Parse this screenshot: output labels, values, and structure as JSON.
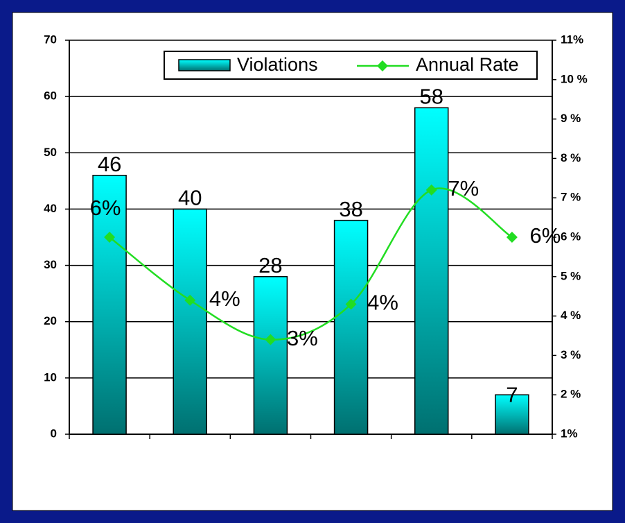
{
  "chart_data": {
    "type": "bar",
    "categories": [
      null,
      null,
      null,
      null,
      null,
      null
    ],
    "series": [
      {
        "name": "Violations",
        "type": "bar",
        "color": "#00e5e5",
        "values": [
          46,
          40,
          28,
          38,
          58,
          7
        ]
      },
      {
        "name": "Annual Rate",
        "type": "line",
        "axis": "y2",
        "color": "#22dd22",
        "values": [
          6.0,
          4.4,
          3.4,
          4.3,
          7.2,
          6.0
        ],
        "value_labels": [
          "6%",
          "4%",
          "3%",
          "4%",
          "7%",
          "6%"
        ]
      }
    ],
    "ylim": [
      0,
      70
    ],
    "yticks": [
      0,
      10,
      20,
      30,
      40,
      50,
      60,
      70
    ],
    "y2lim": [
      1,
      11
    ],
    "y2ticks": [
      {
        "value": 1,
        "label": "1%"
      },
      {
        "value": 2,
        "label": "2 %"
      },
      {
        "value": 3,
        "label": "3 %"
      },
      {
        "value": 4,
        "label": "4 %"
      },
      {
        "value": 5,
        "label": "5 %"
      },
      {
        "value": 6,
        "label": "6 %"
      },
      {
        "value": 7,
        "label": "7 %"
      },
      {
        "value": 8,
        "label": "8 %"
      },
      {
        "value": 9,
        "label": "9 %"
      },
      {
        "value": 10,
        "label": "10 %"
      },
      {
        "value": 11,
        "label": "11%"
      }
    ],
    "grid": true,
    "legend": "top"
  }
}
